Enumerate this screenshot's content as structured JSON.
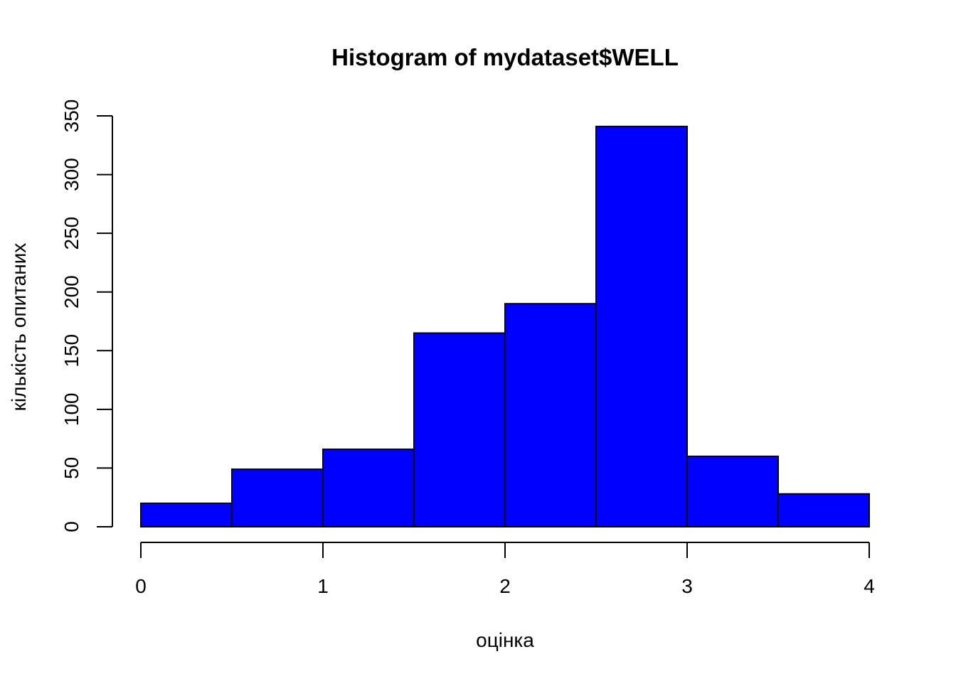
{
  "chart_data": {
    "type": "bar",
    "subtype": "histogram",
    "title": "Histogram of mydataset$WELL",
    "xlabel": "оцінка",
    "ylabel": "кількість опитаних",
    "bins": [
      {
        "x0": 0.0,
        "x1": 0.5,
        "count": 20
      },
      {
        "x0": 0.5,
        "x1": 1.0,
        "count": 49
      },
      {
        "x0": 1.0,
        "x1": 1.5,
        "count": 66
      },
      {
        "x0": 1.5,
        "x1": 2.0,
        "count": 165
      },
      {
        "x0": 2.0,
        "x1": 2.5,
        "count": 190
      },
      {
        "x0": 2.5,
        "x1": 3.0,
        "count": 341
      },
      {
        "x0": 3.0,
        "x1": 3.5,
        "count": 60
      },
      {
        "x0": 3.5,
        "x1": 4.0,
        "count": 28
      }
    ],
    "xlim": [
      0,
      4
    ],
    "ylim": [
      0,
      350
    ],
    "x_ticks": [
      0,
      1,
      2,
      3,
      4
    ],
    "x_tick_labels": [
      "0",
      "1",
      "2",
      "3",
      "4"
    ],
    "y_ticks": [
      0,
      50,
      100,
      150,
      200,
      250,
      300,
      350
    ],
    "y_tick_labels": [
      "0",
      "50",
      "100",
      "150",
      "200",
      "250",
      "300",
      "350"
    ],
    "bar_color": "#0000ff",
    "bar_border_color": "#000000",
    "grid": false,
    "legend": "none"
  }
}
